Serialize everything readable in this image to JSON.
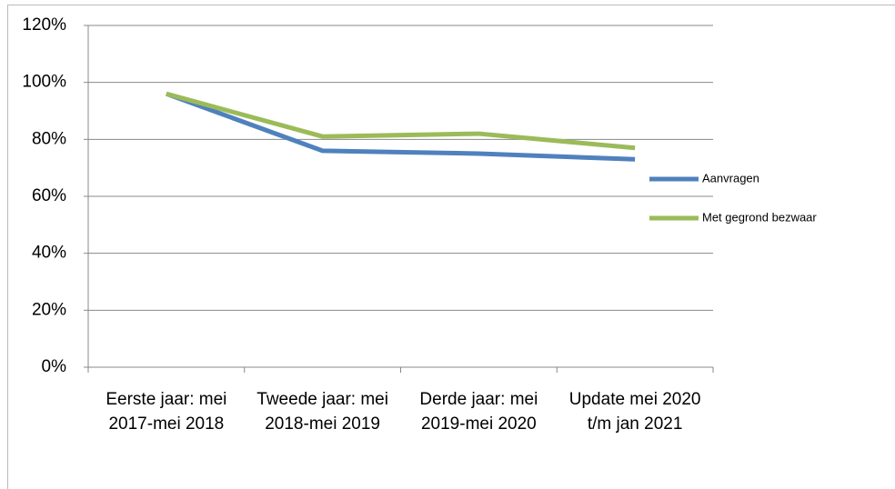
{
  "chart_data": {
    "type": "line",
    "categories": [
      "Eerste jaar: mei 2017-mei 2018",
      "Tweede jaar: mei 2018-mei 2019",
      "Derde jaar: mei 2019-mei 2020",
      "Update mei 2020 t/m jan 2021"
    ],
    "series": [
      {
        "name": "Aanvragen",
        "color": "#4f81bd",
        "values": [
          96,
          76,
          75,
          73
        ]
      },
      {
        "name": "Met gegrond bezwaar",
        "color": "#9bbb59",
        "values": [
          96,
          81,
          82,
          77
        ]
      }
    ],
    "ylim": [
      0,
      120
    ],
    "yticks": [
      {
        "value": 0,
        "label": "0%"
      },
      {
        "value": 20,
        "label": "20%"
      },
      {
        "value": 40,
        "label": "40%"
      },
      {
        "value": 60,
        "label": "60%"
      },
      {
        "value": 80,
        "label": "80%"
      },
      {
        "value": 100,
        "label": "100%"
      },
      {
        "value": 120,
        "label": "120%"
      }
    ],
    "grid": true,
    "legend": "right"
  }
}
